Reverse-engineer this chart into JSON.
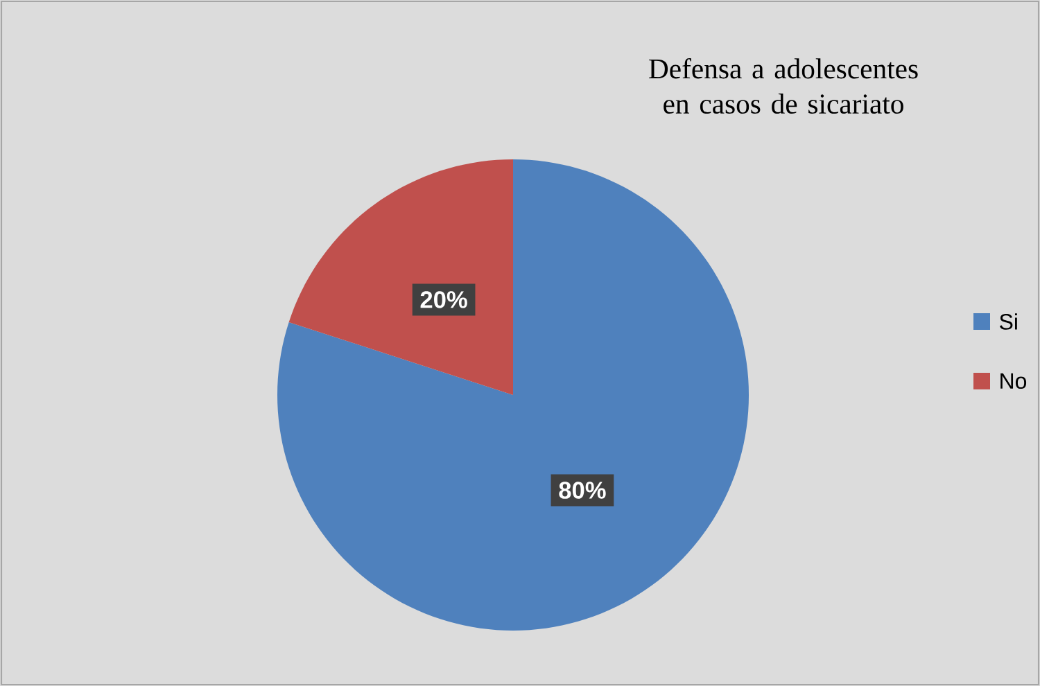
{
  "chart_data": {
    "type": "pie",
    "title": "Defensa a adolescentes en casos de sicariato",
    "categories": [
      "Si",
      "No"
    ],
    "values": [
      80,
      20
    ],
    "colors": [
      "#4f81bd",
      "#c0504d"
    ],
    "value_labels": [
      "80%",
      "20%"
    ],
    "legend": "right"
  }
}
